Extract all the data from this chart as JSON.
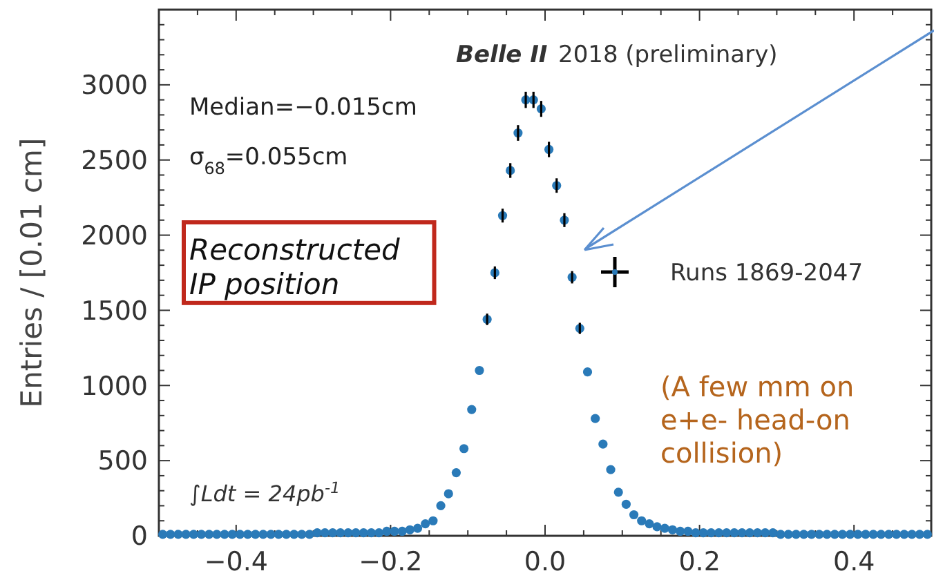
{
  "chart_data": {
    "type": "scatter",
    "ylabel": "Entries / [0.01 cm]",
    "xlim": [
      -0.5,
      0.5
    ],
    "xticks": [
      {
        "value": -0.5,
        "label": null
      },
      {
        "value": -0.45,
        "label": null
      },
      -0.4,
      {
        "value": -0.35,
        "label": null
      },
      {
        "value": -0.3,
        "label": null
      },
      {
        "value": -0.25,
        "label": null
      },
      -0.2,
      {
        "value": -0.15,
        "label": null
      },
      {
        "value": -0.1,
        "label": null
      },
      {
        "value": -0.05,
        "label": null
      },
      {
        "value": 0,
        "label": "0.0"
      },
      {
        "value": 0.05,
        "label": null
      },
      {
        "value": 0.1,
        "label": null
      },
      {
        "value": 0.15,
        "label": null
      },
      0.2,
      {
        "value": 0.25,
        "label": null
      },
      {
        "value": 0.3,
        "label": null
      },
      {
        "value": 0.35,
        "label": null
      },
      0.4,
      {
        "value": 0.45,
        "label": null
      }
    ],
    "ylim": [
      0,
      3500
    ],
    "yticks": [
      0,
      {
        "value": 100,
        "label": null
      },
      {
        "value": 200,
        "label": null
      },
      {
        "value": 300,
        "label": null
      },
      {
        "value": 400,
        "label": null
      },
      500,
      {
        "value": 600,
        "label": null
      },
      {
        "value": 700,
        "label": null
      },
      {
        "value": 800,
        "label": null
      },
      {
        "value": 900,
        "label": null
      },
      1000,
      {
        "value": 1100,
        "label": null
      },
      {
        "value": 1200,
        "label": null
      },
      {
        "value": 1300,
        "label": null
      },
      {
        "value": 1400,
        "label": null
      },
      1500,
      {
        "value": 1600,
        "label": null
      },
      {
        "value": 1700,
        "label": null
      },
      {
        "value": 1800,
        "label": null
      },
      {
        "value": 1900,
        "label": null
      },
      2000,
      {
        "value": 2100,
        "label": null
      },
      {
        "value": 2200,
        "label": null
      },
      {
        "value": 2300,
        "label": null
      },
      {
        "value": 2400,
        "label": null
      },
      2500,
      {
        "value": 2600,
        "label": null
      },
      {
        "value": 2700,
        "label": null
      },
      {
        "value": 2800,
        "label": null
      },
      {
        "value": 2900,
        "label": null
      },
      3000,
      {
        "value": 3100,
        "label": null
      },
      {
        "value": 3200,
        "label": null
      },
      {
        "value": 3300,
        "label": null
      },
      {
        "value": 3400,
        "label": null
      }
    ],
    "grid": false,
    "legend": "right",
    "marker": "circle",
    "annotations": [
      "Belle II",
      "2018 (preliminary)",
      "Median=−0.015cm",
      "σ$_{68}$=0.055cm",
      "Reconstructed\nIP position",
      "∫Ldt = 24pb$^{-1}$",
      "(A few mm on\ne+e- head-on\ncollision)"
    ],
    "series": [
      {
        "name": "Runs 1869-2047",
        "color": "#2a7ab8",
        "x": [
          -0.495,
          -0.485,
          -0.475,
          -0.465,
          -0.455,
          -0.445,
          -0.435,
          -0.425,
          -0.415,
          -0.405,
          -0.395,
          -0.385,
          -0.375,
          -0.365,
          -0.355,
          -0.345,
          -0.335,
          -0.325,
          -0.315,
          -0.305,
          -0.295,
          -0.285,
          -0.275,
          -0.265,
          -0.255,
          -0.245,
          -0.235,
          -0.225,
          -0.215,
          -0.205,
          -0.195,
          -0.185,
          -0.175,
          -0.165,
          -0.155,
          -0.145,
          -0.135,
          -0.125,
          -0.115,
          -0.105,
          -0.095,
          -0.085,
          -0.075,
          -0.065,
          -0.055,
          -0.045,
          -0.035,
          -0.025,
          -0.015,
          -0.005,
          0.005,
          0.015,
          0.025,
          0.035,
          0.045,
          0.055,
          0.065,
          0.075,
          0.085,
          0.095,
          0.105,
          0.115,
          0.125,
          0.135,
          0.145,
          0.155,
          0.165,
          0.175,
          0.185,
          0.195,
          0.205,
          0.215,
          0.225,
          0.235,
          0.245,
          0.255,
          0.265,
          0.275,
          0.285,
          0.295,
          0.305,
          0.315,
          0.325,
          0.335,
          0.345,
          0.355,
          0.365,
          0.375,
          0.385,
          0.395,
          0.405,
          0.415,
          0.425,
          0.435,
          0.445,
          0.455,
          0.465,
          0.475,
          0.485,
          0.495
        ],
        "values": [
          10,
          10,
          10,
          10,
          10,
          10,
          10,
          10,
          10,
          10,
          10,
          10,
          10,
          10,
          10,
          10,
          10,
          10,
          10,
          10,
          20,
          20,
          20,
          20,
          20,
          20,
          20,
          20,
          20,
          30,
          30,
          30,
          40,
          50,
          80,
          100,
          200,
          280,
          420,
          580,
          840,
          1100,
          1440,
          1750,
          2130,
          2430,
          2680,
          2900,
          2900,
          2840,
          2570,
          2330,
          2100,
          1720,
          1380,
          1090,
          780,
          610,
          440,
          290,
          210,
          140,
          100,
          80,
          60,
          50,
          40,
          30,
          30,
          20,
          20,
          20,
          20,
          20,
          20,
          20,
          20,
          20,
          20,
          20,
          10,
          10,
          10,
          10,
          10,
          10,
          10,
          10,
          10,
          10,
          10,
          10,
          10,
          10,
          10,
          10,
          10,
          10,
          10,
          10
        ],
        "errors": [
          null,
          null,
          null,
          null,
          null,
          null,
          null,
          null,
          null,
          null,
          null,
          null,
          null,
          null,
          null,
          null,
          null,
          null,
          null,
          null,
          null,
          null,
          null,
          null,
          null,
          null,
          null,
          null,
          null,
          null,
          null,
          null,
          null,
          null,
          null,
          null,
          null,
          null,
          null,
          null,
          null,
          null,
          38,
          42,
          46,
          49,
          52,
          54,
          54,
          53,
          51,
          48,
          46,
          41,
          37,
          null,
          null,
          null,
          null,
          null,
          null,
          null,
          null,
          null,
          null,
          null,
          null,
          null,
          null,
          null,
          null,
          null,
          null,
          null,
          null,
          null,
          null,
          null,
          null,
          null,
          null,
          null,
          null,
          null,
          null,
          null,
          null,
          null,
          null,
          null,
          null,
          null,
          null,
          null,
          null,
          null,
          null,
          null,
          null,
          null
        ]
      }
    ]
  }
}
